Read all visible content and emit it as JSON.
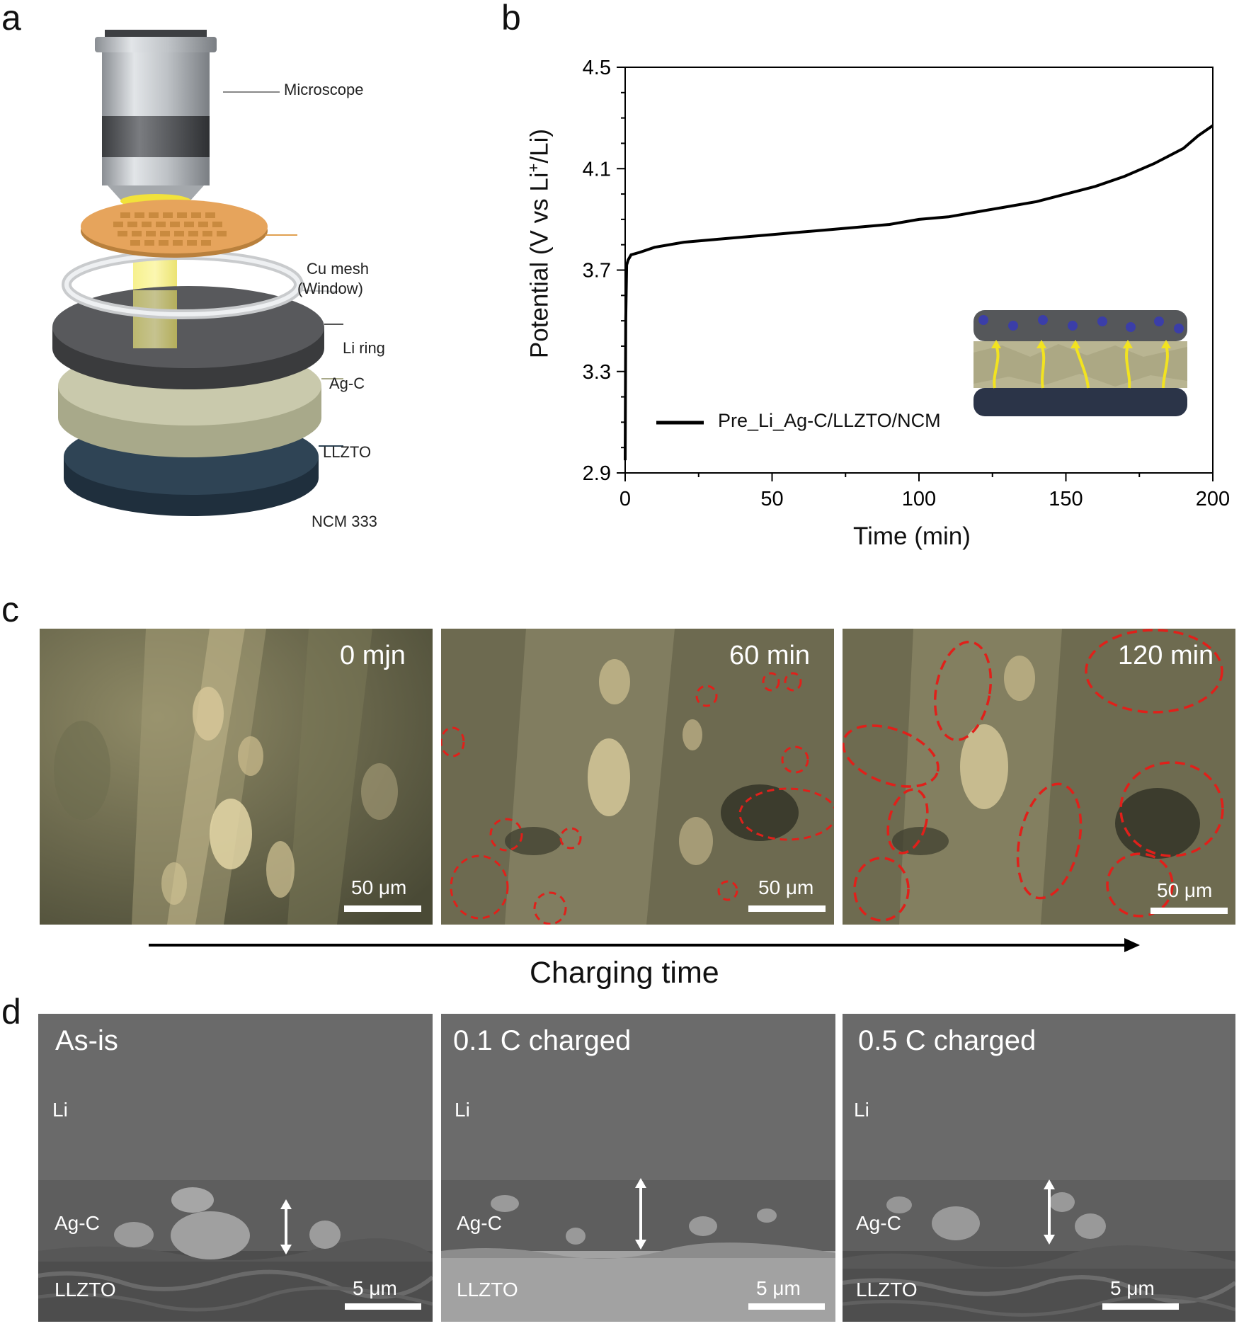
{
  "panels": {
    "a": {
      "letter": "a",
      "labels": {
        "microscope": "Microscope",
        "cu_mesh_line1": "Cu mesh",
        "cu_mesh_line2": "(Window)",
        "li_ring": "Li ring",
        "ag_c": "Ag-C",
        "llzto": "LLZTO",
        "ncm": "NCM 333"
      }
    },
    "b": {
      "letter": "b",
      "ylabel_pre": "Potential (V vs Li",
      "ylabel_sup": "+",
      "ylabel_post": "/Li)",
      "xlabel": "Time (min)",
      "legend": "Pre_Li_Ag-C/LLZTO/NCM"
    },
    "c": {
      "letter": "c",
      "images": [
        {
          "time": "0 mjn",
          "scale": "50 μm"
        },
        {
          "time": "60 min",
          "scale": "50 μm"
        },
        {
          "time": "120 min",
          "scale": "50 μm"
        }
      ],
      "arrow_label": "Charging time"
    },
    "d": {
      "letter": "d",
      "images": [
        {
          "title": "As-is",
          "li": "Li",
          "agc": "Ag-C",
          "llzto": "LLZTO",
          "scale": "5 μm"
        },
        {
          "title": "0.1 C charged",
          "li": "Li",
          "agc": "Ag-C",
          "llzto": "LLZTO",
          "scale": "5 μm"
        },
        {
          "title": "0.5 C charged",
          "li": "Li",
          "agc": "Ag-C",
          "llzto": "LLZTO",
          "scale": "5 μm"
        }
      ]
    }
  },
  "chart_data": {
    "type": "line",
    "xlabel": "Time (min)",
    "ylabel": "Potential (V vs Li+/Li)",
    "xlim": [
      0,
      200
    ],
    "ylim": [
      2.9,
      4.5
    ],
    "xticks": [
      0,
      50,
      100,
      150,
      200
    ],
    "yticks": [
      2.9,
      3.3,
      3.7,
      4.1,
      4.5
    ],
    "legend_position": "bottom-left",
    "series": [
      {
        "name": "Pre_Li_Ag-C/LLZTO/NCM",
        "color": "#000000",
        "x": [
          0,
          0.2,
          0.5,
          1,
          2,
          5,
          10,
          20,
          30,
          40,
          50,
          60,
          70,
          80,
          90,
          100,
          110,
          120,
          130,
          140,
          150,
          160,
          170,
          180,
          190,
          195,
          200
        ],
        "y": [
          2.95,
          3.5,
          3.72,
          3.74,
          3.76,
          3.77,
          3.79,
          3.81,
          3.82,
          3.83,
          3.84,
          3.85,
          3.86,
          3.87,
          3.88,
          3.9,
          3.91,
          3.93,
          3.95,
          3.97,
          4.0,
          4.03,
          4.07,
          4.12,
          4.18,
          4.23,
          4.27
        ]
      }
    ]
  }
}
